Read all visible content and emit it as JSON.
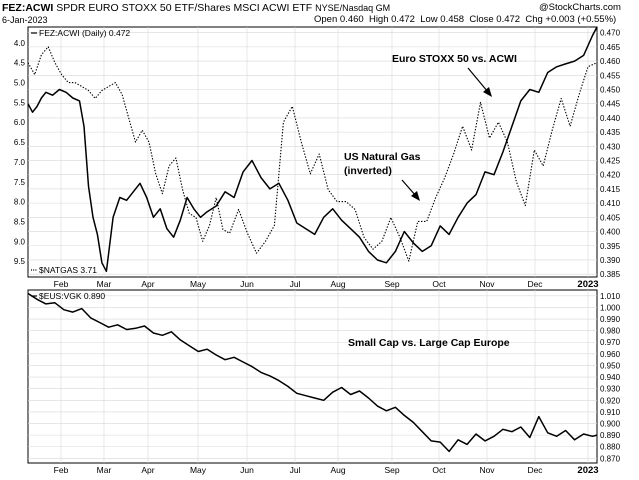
{
  "header": {
    "symbol": "FEZ:ACWI",
    "description": "SPDR EURO STOXX 50 ETF/Shares MSCI ACWI ETF",
    "exchange": "NYSE/Nasdaq GM",
    "date": "6-Jan-2023",
    "open_label": "Open",
    "open_value": "0.460",
    "high_label": "High",
    "high_value": "0.472",
    "low_label": "Low",
    "low_value": "0.458",
    "close_label": "Close",
    "close_value": "0.472",
    "chg_label": "Chg",
    "chg_value": "+0.003 (+0.55%)",
    "watermark": "@StockCharts.com"
  },
  "chart_data": [
    {
      "type": "line",
      "legend": [
        {
          "name": "FEZ:ACWI (Daily) 0.472",
          "style": "solid",
          "placement": "top-left"
        },
        {
          "name": "$NATGAS 3.71",
          "style": "dotted",
          "placement": "bottom-left"
        }
      ],
      "months": [
        "Feb",
        "Mar",
        "Apr",
        "May",
        "Jun",
        "Jul",
        "Aug",
        "Sep",
        "Oct",
        "Nov",
        "Dec",
        "2023"
      ],
      "y_right": {
        "ticks": [
          "0.470",
          "0.465",
          "0.460",
          "0.455",
          "0.450",
          "0.445",
          "0.440",
          "0.435",
          "0.430",
          "0.425",
          "0.420",
          "0.415",
          "0.410",
          "0.405",
          "0.400",
          "0.395",
          "0.390",
          "0.385"
        ],
        "ylim": [
          0.384,
          0.472
        ]
      },
      "y_left": {
        "ticks": [
          "4.0",
          "4.5",
          "5.0",
          "5.5",
          "6.0",
          "6.5",
          "7.0",
          "7.5",
          "8.0",
          "8.5",
          "9.0",
          "9.5"
        ],
        "ylim": [
          3.6,
          9.9
        ],
        "inverted": true
      },
      "series": [
        {
          "name": "FEZ:ACWI (Daily) 0.472",
          "axis": "right",
          "style": "solid",
          "x": [
            0,
            2,
            4,
            6,
            8,
            11,
            14,
            17,
            20,
            23,
            25,
            27,
            29,
            31,
            33,
            35,
            38,
            41,
            44,
            47,
            50,
            53,
            56,
            59,
            62,
            65,
            68,
            71,
            74,
            77,
            80,
            84,
            88,
            92,
            96,
            100,
            104,
            108,
            112,
            116,
            120,
            124,
            128,
            132,
            136,
            140,
            144,
            148,
            152,
            156,
            160,
            164,
            168,
            172,
            176,
            180,
            184,
            188,
            192,
            196,
            200,
            204,
            208,
            212,
            216,
            220,
            224,
            228,
            232,
            236,
            240,
            244,
            248,
            252,
            254
          ],
          "values": [
            0.445,
            0.442,
            0.444,
            0.447,
            0.449,
            0.448,
            0.45,
            0.449,
            0.447,
            0.446,
            0.437,
            0.416,
            0.405,
            0.399,
            0.389,
            0.386,
            0.405,
            0.412,
            0.411,
            0.414,
            0.417,
            0.412,
            0.405,
            0.408,
            0.401,
            0.398,
            0.404,
            0.412,
            0.408,
            0.405,
            0.407,
            0.409,
            0.414,
            0.412,
            0.421,
            0.425,
            0.419,
            0.415,
            0.417,
            0.411,
            0.403,
            0.401,
            0.399,
            0.405,
            0.408,
            0.404,
            0.401,
            0.398,
            0.393,
            0.39,
            0.389,
            0.393,
            0.4,
            0.396,
            0.393,
            0.395,
            0.402,
            0.399,
            0.405,
            0.41,
            0.413,
            0.421,
            0.42,
            0.428,
            0.437,
            0.446,
            0.45,
            0.449,
            0.456,
            0.458,
            0.459,
            0.46,
            0.462,
            0.469,
            0.472
          ]
        },
        {
          "name": "$NATGAS 3.71",
          "axis": "left",
          "style": "dotted",
          "x": [
            0,
            3,
            6,
            9,
            12,
            15,
            18,
            21,
            24,
            27,
            30,
            33,
            36,
            39,
            42,
            45,
            48,
            51,
            54,
            57,
            60,
            63,
            66,
            69,
            72,
            75,
            78,
            81,
            84,
            87,
            90,
            94,
            98,
            102,
            106,
            110,
            114,
            118,
            122,
            126,
            130,
            134,
            138,
            142,
            146,
            150,
            154,
            158,
            162,
            166,
            170,
            174,
            178,
            182,
            186,
            190,
            194,
            198,
            202,
            206,
            210,
            214,
            218,
            222,
            226,
            230,
            234,
            238,
            242,
            246,
            250,
            254
          ],
          "values": [
            4.5,
            4.8,
            4.3,
            4.1,
            4.5,
            4.8,
            5.0,
            5.0,
            5.1,
            5.2,
            5.4,
            5.2,
            5.1,
            5.0,
            5.3,
            5.9,
            6.5,
            6.2,
            6.5,
            7.3,
            7.8,
            7.1,
            6.9,
            7.7,
            8.3,
            8.4,
            9.0,
            8.6,
            7.9,
            8.7,
            8.8,
            8.2,
            8.8,
            9.3,
            9.0,
            8.6,
            6.0,
            5.6,
            6.5,
            7.3,
            6.8,
            7.7,
            8.0,
            8.0,
            8.2,
            8.9,
            9.2,
            9.0,
            8.4,
            8.9,
            9.5,
            8.5,
            8.5,
            7.9,
            7.4,
            6.8,
            6.1,
            6.7,
            5.5,
            6.4,
            6.0,
            6.5,
            7.5,
            8.1,
            6.7,
            7.1,
            6.2,
            5.4,
            6.1,
            5.3,
            4.6,
            4.5
          ]
        }
      ],
      "annotations": [
        {
          "text": "Euro STOXX 50 vs. ACWI"
        },
        {
          "text": "US Natural Gas"
        },
        {
          "text": "(inverted)"
        }
      ]
    },
    {
      "type": "line",
      "legend": [
        {
          "name": "$EUS:VGK 0.890",
          "style": "solid",
          "placement": "top-left"
        }
      ],
      "months": [
        "Feb",
        "Mar",
        "Apr",
        "May",
        "Jun",
        "Jul",
        "Aug",
        "Sep",
        "Oct",
        "Nov",
        "Dec",
        "2023"
      ],
      "y_right": {
        "ticks": [
          "1.010",
          "1.000",
          "0.990",
          "0.980",
          "0.970",
          "0.960",
          "0.950",
          "0.940",
          "0.930",
          "0.920",
          "0.910",
          "0.900",
          "0.890",
          "0.880",
          "0.870"
        ],
        "ylim": [
          0.866,
          1.015
        ]
      },
      "series": [
        {
          "name": "$EUS:VGK 0.890",
          "axis": "right",
          "style": "solid",
          "x": [
            0,
            4,
            8,
            12,
            16,
            20,
            24,
            28,
            32,
            36,
            40,
            44,
            48,
            52,
            56,
            60,
            64,
            68,
            72,
            76,
            80,
            84,
            88,
            92,
            96,
            100,
            104,
            108,
            112,
            116,
            120,
            124,
            128,
            132,
            136,
            140,
            144,
            148,
            152,
            156,
            160,
            164,
            168,
            172,
            176,
            180,
            184,
            188,
            192,
            196,
            200,
            204,
            208,
            212,
            216,
            220,
            224,
            228,
            232,
            236,
            240,
            244,
            248,
            252,
            254
          ],
          "values": [
            1.012,
            1.007,
            1.003,
            1.004,
            0.998,
            0.996,
            0.999,
            0.991,
            0.987,
            0.983,
            0.985,
            0.981,
            0.982,
            0.984,
            0.978,
            0.976,
            0.979,
            0.972,
            0.967,
            0.962,
            0.964,
            0.959,
            0.955,
            0.957,
            0.953,
            0.949,
            0.944,
            0.941,
            0.937,
            0.932,
            0.926,
            0.924,
            0.922,
            0.92,
            0.927,
            0.931,
            0.925,
            0.928,
            0.922,
            0.915,
            0.911,
            0.914,
            0.907,
            0.901,
            0.893,
            0.885,
            0.884,
            0.876,
            0.886,
            0.882,
            0.891,
            0.885,
            0.889,
            0.895,
            0.893,
            0.897,
            0.888,
            0.906,
            0.892,
            0.889,
            0.894,
            0.886,
            0.891,
            0.889,
            0.89
          ]
        }
      ],
      "annotations": [
        {
          "text": "Small Cap vs. Large Cap Europe"
        }
      ]
    }
  ]
}
